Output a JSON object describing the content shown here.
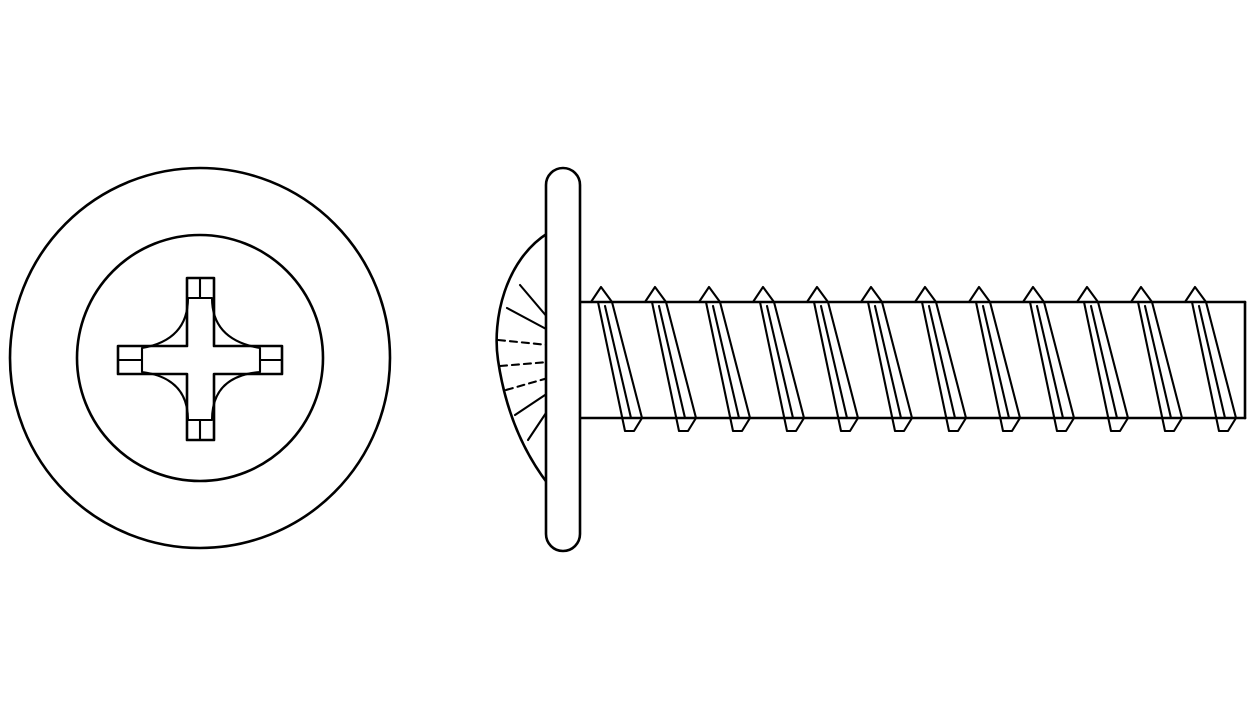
{
  "drawing": {
    "subject": "phillips-washer-head-screw",
    "views": [
      "top-view",
      "side-view"
    ],
    "line_color": "#000000",
    "background_color": "#ffffff",
    "thread_crest_count": 12
  }
}
